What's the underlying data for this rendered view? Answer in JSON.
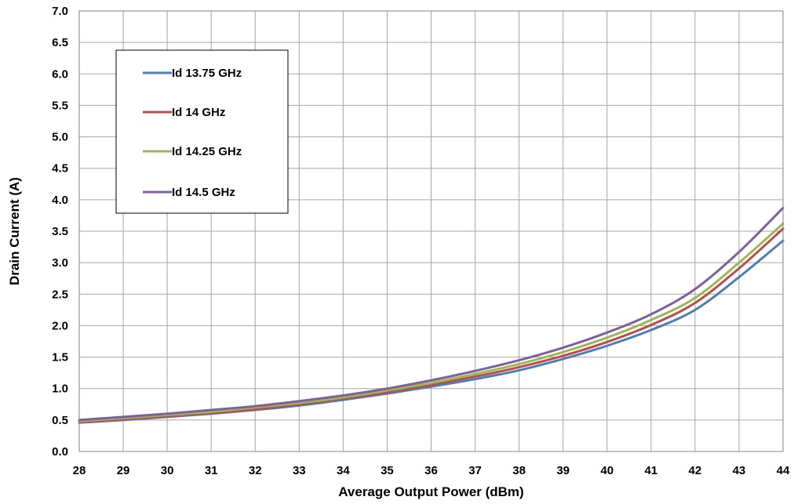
{
  "chart_data": {
    "type": "line",
    "xlabel": "Average Output Power (dBm)",
    "ylabel": "Drain Current (A)",
    "xlim": [
      28,
      44
    ],
    "ylim": [
      0.0,
      7.0
    ],
    "x_ticks": [
      "28",
      "29",
      "30",
      "31",
      "32",
      "33",
      "34",
      "35",
      "36",
      "37",
      "38",
      "39",
      "40",
      "41",
      "42",
      "43",
      "44"
    ],
    "y_ticks": [
      "0.0",
      "0.5",
      "1.0",
      "1.5",
      "2.0",
      "2.5",
      "3.0",
      "3.5",
      "4.0",
      "4.5",
      "5.0",
      "5.5",
      "6.0",
      "6.5",
      "7.0"
    ],
    "grid": true,
    "legend_position": "top-left",
    "x": [
      28,
      29,
      30,
      31,
      32,
      33,
      34,
      35,
      36,
      37,
      38,
      39,
      40,
      41,
      42,
      43,
      44
    ],
    "series": [
      {
        "name": "Id 13.75 GHz",
        "color": "#4a7ebb",
        "values": [
          0.46,
          0.5,
          0.55,
          0.6,
          0.66,
          0.73,
          0.82,
          0.92,
          1.03,
          1.15,
          1.29,
          1.47,
          1.68,
          1.93,
          2.25,
          2.77,
          3.35
        ]
      },
      {
        "name": "Id 14 GHz",
        "color": "#be4b48",
        "values": [
          0.46,
          0.51,
          0.56,
          0.61,
          0.67,
          0.75,
          0.84,
          0.94,
          1.06,
          1.19,
          1.34,
          1.52,
          1.74,
          2.01,
          2.36,
          2.91,
          3.54
        ]
      },
      {
        "name": "Id 14.25 GHz",
        "color": "#98b954",
        "values": [
          0.48,
          0.53,
          0.58,
          0.63,
          0.7,
          0.77,
          0.86,
          0.97,
          1.09,
          1.23,
          1.39,
          1.58,
          1.81,
          2.09,
          2.44,
          3.0,
          3.62
        ]
      },
      {
        "name": "Id 14.5 GHz",
        "color": "#7d60a0",
        "values": [
          0.5,
          0.55,
          0.6,
          0.66,
          0.72,
          0.8,
          0.89,
          1.0,
          1.13,
          1.28,
          1.45,
          1.65,
          1.89,
          2.18,
          2.58,
          3.17,
          3.87
        ]
      }
    ]
  }
}
